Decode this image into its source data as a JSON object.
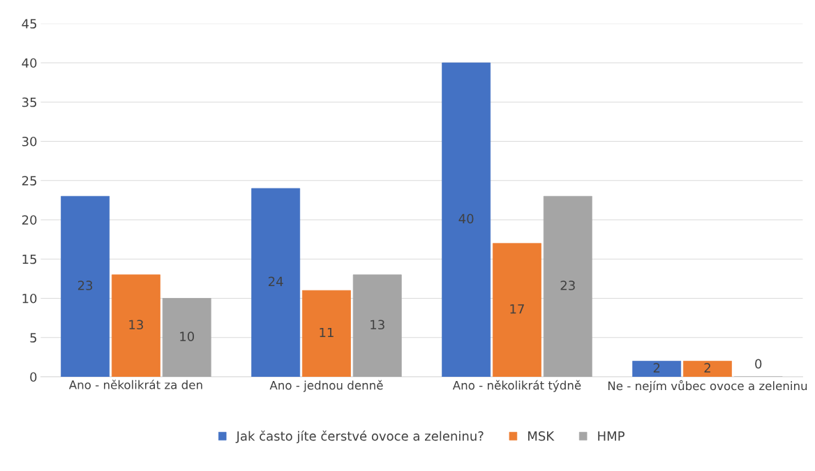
{
  "chart_data": {
    "type": "bar",
    "categories": [
      "Ano - několikrát za den",
      "Ano - jednou denně",
      "Ano - několikrát týdně",
      "Ne - nejím vůbec ovoce a zeleninu"
    ],
    "series": [
      {
        "name": "Jak často jíte čerstvé ovoce a zeleninu?",
        "color": "#4472c4",
        "values": [
          23,
          24,
          40,
          2
        ]
      },
      {
        "name": "MSK",
        "color": "#ed7d31",
        "values": [
          13,
          11,
          17,
          2
        ]
      },
      {
        "name": "HMP",
        "color": "#a5a5a5",
        "values": [
          10,
          13,
          23,
          0
        ]
      }
    ],
    "ylim": [
      0,
      45
    ],
    "yticks": [
      0,
      5,
      10,
      15,
      20,
      25,
      30,
      35,
      40,
      45
    ],
    "grid": "y",
    "legend": "bottom",
    "data_labels": true
  }
}
